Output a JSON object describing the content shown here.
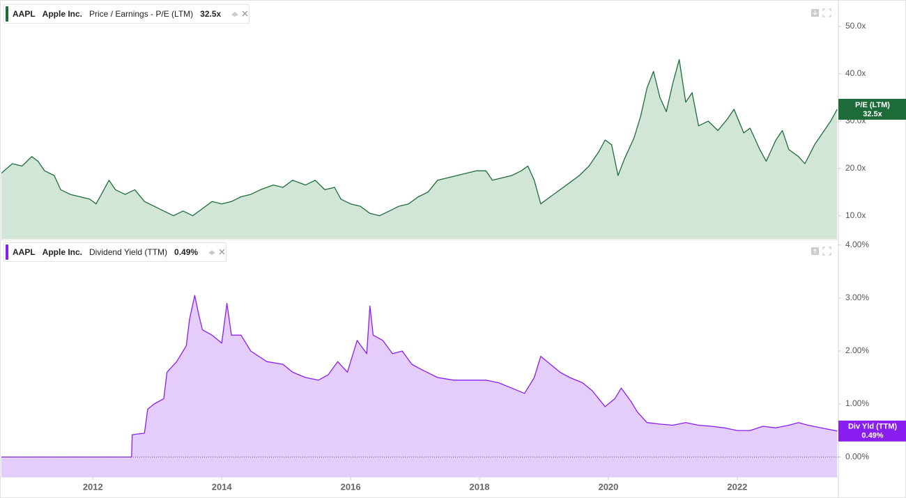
{
  "chart_data": [
    {
      "type": "area",
      "ticker": "AAPL",
      "company": "Apple Inc.",
      "last_value_label": "32.5x",
      "badge_label": "P/E (LTM)",
      "x": [
        2010.58,
        2010.75,
        2010.9,
        2011.05,
        2011.15,
        2011.25,
        2011.4,
        2011.5,
        2011.65,
        2011.8,
        2011.95,
        2012.05,
        2012.15,
        2012.25,
        2012.35,
        2012.5,
        2012.65,
        2012.8,
        2012.95,
        2013.1,
        2013.25,
        2013.4,
        2013.55,
        2013.7,
        2013.85,
        2014.0,
        2014.15,
        2014.3,
        2014.45,
        2014.6,
        2014.8,
        2014.95,
        2015.1,
        2015.3,
        2015.45,
        2015.6,
        2015.75,
        2015.85,
        2016.0,
        2016.15,
        2016.3,
        2016.45,
        2016.6,
        2016.75,
        2016.9,
        2017.05,
        2017.2,
        2017.35,
        2017.5,
        2017.65,
        2017.8,
        2017.95,
        2018.1,
        2018.2,
        2018.35,
        2018.5,
        2018.65,
        2018.75,
        2018.85,
        2018.95,
        2019.1,
        2019.25,
        2019.4,
        2019.55,
        2019.7,
        2019.85,
        2019.95,
        2020.05,
        2020.15,
        2020.25,
        2020.4,
        2020.5,
        2020.6,
        2020.7,
        2020.8,
        2020.9,
        2021.0,
        2021.1,
        2021.2,
        2021.3,
        2021.4,
        2021.55,
        2021.7,
        2021.85,
        2021.95,
        2022.1,
        2022.2,
        2022.35,
        2022.45,
        2022.6,
        2022.7,
        2022.8,
        2022.95,
        2023.05,
        2023.2,
        2023.35,
        2023.45,
        2023.55
      ],
      "series": [
        {
          "name": "Price / Earnings - P/E (LTM)",
          "color": "#1e6b3a",
          "fill": "#d2e6d8",
          "values": [
            19,
            21,
            20.5,
            22.5,
            21.5,
            19.5,
            18.5,
            15.5,
            14.5,
            14,
            13.5,
            12.5,
            15,
            17.5,
            15.5,
            14.5,
            15.5,
            13,
            12,
            11,
            10,
            11,
            10,
            11.5,
            13,
            12.5,
            13,
            14,
            14.5,
            15.5,
            16.5,
            16,
            17.5,
            16.5,
            17.5,
            15.5,
            16,
            13.5,
            12.5,
            12,
            10.5,
            10,
            11,
            12,
            12.5,
            14,
            15,
            17.5,
            18,
            18.5,
            19,
            19.5,
            19.5,
            17.5,
            18,
            18.5,
            19.5,
            20.5,
            17.5,
            12.5,
            14,
            15.5,
            17,
            18.5,
            20.5,
            23.5,
            26,
            25,
            18.5,
            22,
            26.5,
            31,
            37,
            40.5,
            35,
            32,
            38,
            43,
            34,
            36,
            29,
            30,
            28,
            30.5,
            32.5,
            27.5,
            28.5,
            24,
            21.5,
            26,
            28,
            24,
            22.5,
            21,
            25,
            28,
            30,
            32.5
          ]
        }
      ],
      "xlim": [
        2010.58,
        2023.57
      ],
      "ylim": [
        5.1,
        55.3
      ],
      "yticks": [
        {
          "value": 10,
          "label": "10.0x"
        },
        {
          "value": 20,
          "label": "20.0x"
        },
        {
          "value": 30,
          "label": "30.0x"
        },
        {
          "value": 40,
          "label": "40.0x"
        },
        {
          "value": 50,
          "label": "50.0x"
        }
      ],
      "grid": false,
      "zero_line": false
    },
    {
      "type": "area",
      "ticker": "AAPL",
      "company": "Apple Inc.",
      "last_value_label": "0.49%",
      "badge_label": "Div Yld (TTM)",
      "x": [
        2010.58,
        2012.6,
        2012.61,
        2012.8,
        2012.85,
        2012.95,
        2013.1,
        2013.15,
        2013.3,
        2013.45,
        2013.5,
        2013.58,
        2013.65,
        2013.7,
        2013.85,
        2014.0,
        2014.08,
        2014.15,
        2014.3,
        2014.45,
        2014.7,
        2014.95,
        2015.1,
        2015.3,
        2015.5,
        2015.65,
        2015.8,
        2015.95,
        2016.1,
        2016.25,
        2016.3,
        2016.35,
        2016.5,
        2016.65,
        2016.8,
        2016.95,
        2017.1,
        2017.35,
        2017.6,
        2017.85,
        2018.1,
        2018.3,
        2018.5,
        2018.7,
        2018.85,
        2018.95,
        2019.1,
        2019.25,
        2019.4,
        2019.6,
        2019.75,
        2019.95,
        2020.1,
        2020.2,
        2020.35,
        2020.45,
        2020.6,
        2020.8,
        2021.0,
        2021.2,
        2021.4,
        2021.6,
        2021.8,
        2022.0,
        2022.2,
        2022.4,
        2022.6,
        2022.8,
        2022.95,
        2023.1,
        2023.3,
        2023.55
      ],
      "series": [
        {
          "name": "Dividend Yield (TTM)",
          "color": "#8a1ef0",
          "fill": "#e4cdfb",
          "values": [
            0,
            0,
            0.42,
            0.45,
            0.9,
            1.0,
            1.1,
            1.6,
            1.8,
            2.1,
            2.6,
            3.05,
            2.65,
            2.4,
            2.3,
            2.15,
            2.9,
            2.3,
            2.3,
            2.0,
            1.8,
            1.75,
            1.6,
            1.5,
            1.45,
            1.55,
            1.8,
            1.6,
            2.2,
            1.95,
            2.85,
            2.3,
            2.2,
            1.95,
            2.0,
            1.75,
            1.65,
            1.5,
            1.45,
            1.45,
            1.45,
            1.4,
            1.3,
            1.2,
            1.5,
            1.9,
            1.75,
            1.6,
            1.5,
            1.4,
            1.25,
            0.95,
            1.1,
            1.3,
            1.05,
            0.85,
            0.65,
            0.62,
            0.6,
            0.65,
            0.6,
            0.58,
            0.55,
            0.5,
            0.5,
            0.58,
            0.55,
            0.6,
            0.65,
            0.6,
            0.55,
            0.49
          ]
        }
      ],
      "xlim": [
        2010.58,
        2023.57
      ],
      "ylim": [
        -0.38,
        4.09
      ],
      "yticks": [
        {
          "value": 0,
          "label": "0.00%"
        },
        {
          "value": 1,
          "label": "1.00%"
        },
        {
          "value": 2,
          "label": "2.00%"
        },
        {
          "value": 3,
          "label": "3.00%"
        },
        {
          "value": 4,
          "label": "4.00%"
        }
      ],
      "xticks": [
        2012,
        2014,
        2016,
        2018,
        2020,
        2022
      ],
      "grid": false,
      "zero_line": true
    }
  ]
}
